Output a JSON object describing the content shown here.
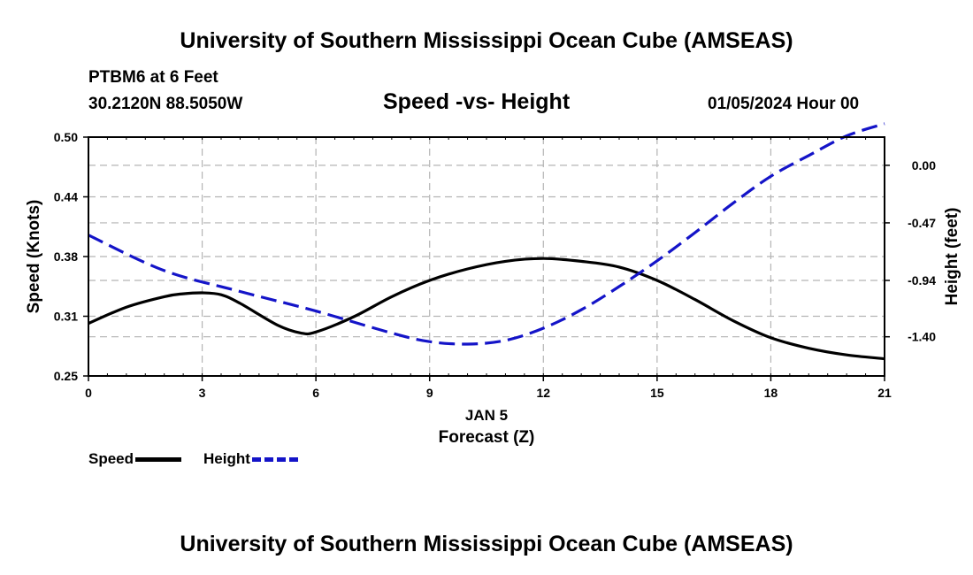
{
  "header": {
    "title": "University of Southern Mississippi Ocean Cube (AMSEAS)",
    "station": "PTBM6 at 6 Feet",
    "coords": "30.2120N  88.5050W",
    "chart_title": "Speed -vs- Height",
    "datetime": "01/05/2024 Hour 00"
  },
  "footer": {
    "title": "University of Southern Mississippi Ocean Cube (AMSEAS)"
  },
  "legend": {
    "speed_label": "Speed",
    "height_label": "Height"
  },
  "colors": {
    "speed": "#000000",
    "height": "#1414c8",
    "grid": "#b4b4b4"
  },
  "chart_data": {
    "type": "line",
    "title": "Speed -vs- Height",
    "xlabel": "Forecast (Z)",
    "xsublabel": "JAN 5",
    "ylabel": "Speed (Knots)",
    "y2label": "Height (feet)",
    "xlim": [
      0,
      21
    ],
    "ylim": [
      0.25,
      0.5
    ],
    "y2lim": [
      -1.72,
      0.23
    ],
    "x_ticks": [
      0,
      3,
      6,
      9,
      12,
      15,
      18,
      21
    ],
    "x_tick_labels": [
      "0",
      "3",
      "6",
      "9",
      "12",
      "15",
      "18",
      "21"
    ],
    "y_ticks": [
      0.25,
      0.3125,
      0.375,
      0.4375,
      0.5
    ],
    "y_tick_labels": [
      "0.25",
      "0.31",
      "0.38",
      "0.44",
      "0.50"
    ],
    "y2_ticks": [
      0.0,
      -0.47,
      -0.94,
      -1.4
    ],
    "y2_tick_labels": [
      "0.00",
      "-0.47",
      "-0.94",
      "-1.40"
    ],
    "series": [
      {
        "name": "Speed",
        "axis": "left",
        "style": "solid",
        "x": [
          0,
          1,
          2,
          2.5,
          3,
          3.5,
          4,
          5,
          5.6,
          6,
          7,
          8,
          9,
          10,
          11,
          12,
          13,
          14,
          15,
          16,
          17,
          18,
          19,
          20,
          21
        ],
        "values": [
          0.305,
          0.322,
          0.333,
          0.336,
          0.337,
          0.335,
          0.326,
          0.303,
          0.295,
          0.296,
          0.312,
          0.333,
          0.35,
          0.362,
          0.37,
          0.373,
          0.37,
          0.364,
          0.35,
          0.33,
          0.308,
          0.29,
          0.279,
          0.272,
          0.268
        ]
      },
      {
        "name": "Height",
        "axis": "right",
        "style": "dashed",
        "x": [
          0,
          2,
          4,
          6,
          8,
          9,
          10,
          11,
          12,
          13,
          14,
          15,
          16,
          17,
          18,
          19,
          20,
          21
        ],
        "values": [
          -0.57,
          -0.86,
          -1.03,
          -1.19,
          -1.37,
          -1.44,
          -1.46,
          -1.43,
          -1.33,
          -1.18,
          -0.99,
          -0.78,
          -0.55,
          -0.31,
          -0.09,
          0.08,
          0.24,
          0.34
        ]
      }
    ]
  }
}
